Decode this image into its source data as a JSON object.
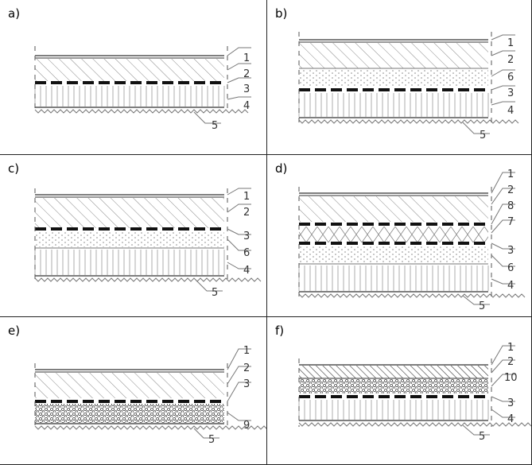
{
  "panels": [
    {
      "id": "a",
      "label": "a)",
      "layers": [
        "hatch-gray",
        "rule",
        "hatch",
        "dash",
        "vert",
        "ground"
      ],
      "callouts": [
        "1",
        "2",
        "3",
        "4",
        "5"
      ]
    },
    {
      "id": "b",
      "label": "b)",
      "layers": [
        "rule",
        "hatch",
        "dots",
        "dash",
        "vert",
        "ground"
      ],
      "callouts": [
        "1",
        "2",
        "6",
        "3",
        "4",
        "5"
      ]
    },
    {
      "id": "c",
      "label": "c)",
      "layers": [
        "rule",
        "hatch",
        "dash",
        "dots",
        "vert",
        "ground"
      ],
      "callouts": [
        "1",
        "2",
        "3",
        "6",
        "4",
        "5"
      ]
    },
    {
      "id": "d",
      "label": "d)",
      "layers": [
        "rule",
        "hatch",
        "dash",
        "insul",
        "dash",
        "dots",
        "vert",
        "ground"
      ],
      "callouts": [
        "1",
        "2",
        "8",
        "7",
        "3",
        "6",
        "4",
        "5"
      ]
    },
    {
      "id": "e",
      "label": "e)",
      "layers": [
        "rule",
        "hatch",
        "dash",
        "gravel",
        "ground"
      ],
      "callouts": [
        "1",
        "2",
        "3",
        "9",
        "5"
      ]
    },
    {
      "id": "f",
      "label": "f)",
      "layers": [
        "dark-hatch",
        "gravel",
        "dash",
        "vert",
        "ground"
      ],
      "callouts": [
        "1",
        "2",
        "10",
        "3",
        "4",
        "5"
      ]
    }
  ]
}
